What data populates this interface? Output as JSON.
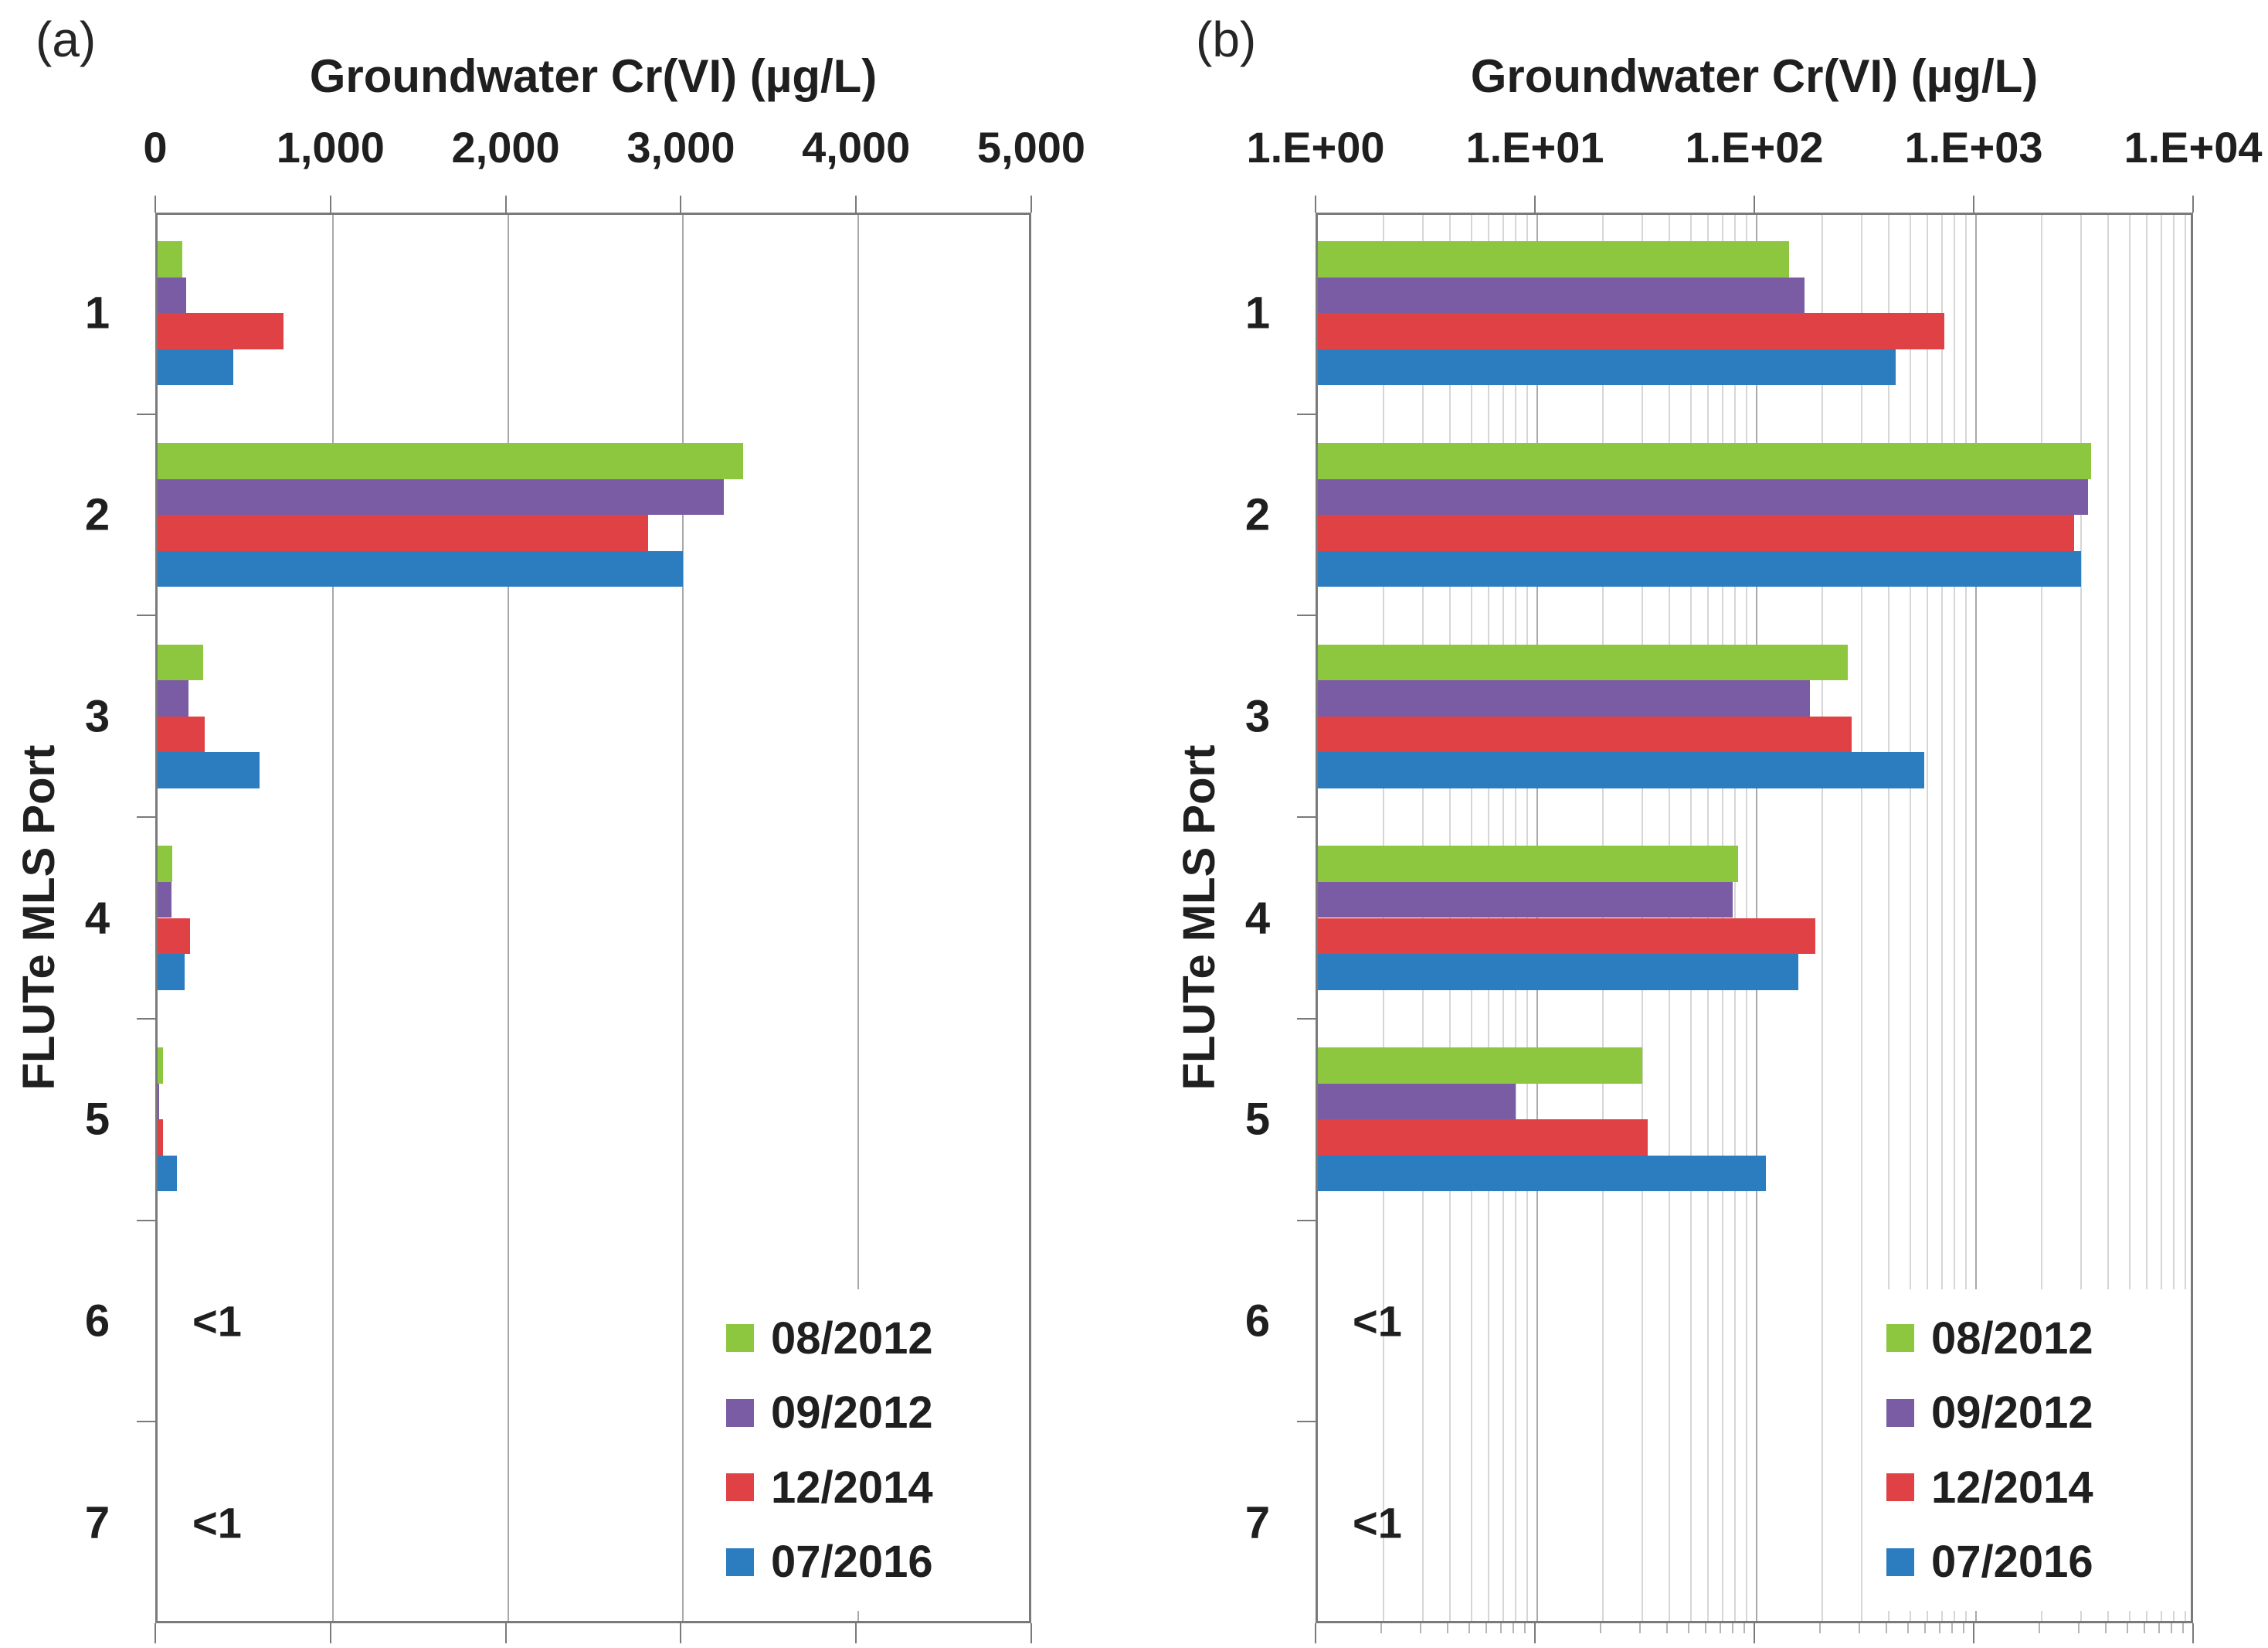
{
  "chart_data": [
    {
      "type": "bar",
      "orientation": "horizontal",
      "panel_label": "(a)",
      "title": "Groundwater Cr(VI) (µg/L)",
      "xlabel": "Groundwater Cr(VI) (µg/L)",
      "ylabel": "FLUTe MLS Port",
      "x_scale": "linear",
      "xlim": [
        0,
        5000
      ],
      "x_ticks": [
        0,
        1000,
        2000,
        3000,
        4000,
        5000
      ],
      "x_tick_labels": [
        "0",
        "1,000",
        "2,000",
        "3,000",
        "4,000",
        "5,000"
      ],
      "categories": [
        "1",
        "2",
        "3",
        "4",
        "5",
        "6",
        "7"
      ],
      "series": [
        {
          "name": "08/2012",
          "color": "#8DC63F",
          "values": [
            140,
            3340,
            260,
            82,
            30,
            null,
            null
          ]
        },
        {
          "name": "09/2012",
          "color": "#7A5CA5",
          "values": [
            165,
            3230,
            175,
            78,
            8,
            null,
            null
          ]
        },
        {
          "name": "12/2014",
          "color": "#DF4145",
          "values": [
            720,
            2800,
            270,
            185,
            32,
            null,
            null
          ]
        },
        {
          "name": "07/2016",
          "color": "#2B7DC0",
          "values": [
            430,
            3000,
            580,
            155,
            110,
            null,
            null
          ]
        }
      ],
      "annotations": [
        {
          "category": "6",
          "text": "<1"
        },
        {
          "category": "7",
          "text": "<1"
        }
      ],
      "legend_position": "lower right",
      "legend_entries": [
        "08/2012",
        "09/2012",
        "12/2014",
        "07/2016"
      ],
      "grid": "major verticals at 1,000 intervals"
    },
    {
      "type": "bar",
      "orientation": "horizontal",
      "panel_label": "(b)",
      "title": "Groundwater Cr(VI) (µg/L)",
      "xlabel": "Groundwater Cr(VI) (µg/L)",
      "ylabel": "FLUTe MLS Port",
      "x_scale": "log",
      "xlim": [
        1,
        10000
      ],
      "x_ticks": [
        1,
        10,
        100,
        1000,
        10000
      ],
      "x_tick_labels": [
        "1.E+00",
        "1.E+01",
        "1.E+02",
        "1.E+03",
        "1.E+04"
      ],
      "categories": [
        "1",
        "2",
        "3",
        "4",
        "5",
        "6",
        "7"
      ],
      "series": [
        {
          "name": "08/2012",
          "color": "#8DC63F",
          "values": [
            140,
            3340,
            260,
            82,
            30,
            null,
            null
          ]
        },
        {
          "name": "09/2012",
          "color": "#7A5CA5",
          "values": [
            165,
            3230,
            175,
            78,
            8,
            null,
            null
          ]
        },
        {
          "name": "12/2014",
          "color": "#DF4145",
          "values": [
            720,
            2800,
            270,
            185,
            32,
            null,
            null
          ]
        },
        {
          "name": "07/2016",
          "color": "#2B7DC0",
          "values": [
            430,
            3000,
            580,
            155,
            110,
            null,
            null
          ]
        }
      ],
      "annotations": [
        {
          "category": "6",
          "text": "<1"
        },
        {
          "category": "7",
          "text": "<1"
        }
      ],
      "legend_position": "lower right",
      "legend_entries": [
        "08/2012",
        "09/2012",
        "12/2014",
        "07/2016"
      ],
      "grid": "log major + minor verticals"
    }
  ],
  "colors": {
    "series_08_2012": "#8DC63F",
    "series_09_2012": "#7A5CA5",
    "series_12_2014": "#DF4145",
    "series_07_2016": "#2B7DC0",
    "grid_major": "#a9a9a9",
    "grid_minor": "#d6d6d6",
    "axis_border": "#7a7a7a",
    "text": "#1f1f1f"
  }
}
